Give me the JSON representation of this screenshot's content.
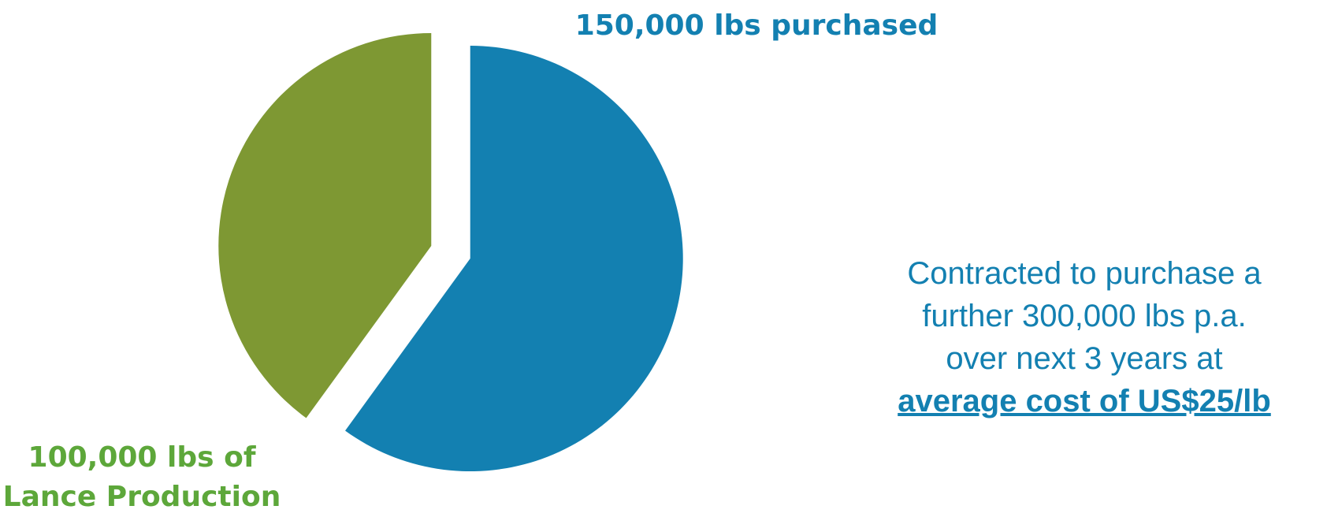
{
  "chart_data": {
    "type": "pie",
    "exploded": true,
    "slices": [
      {
        "label": "150,000 lbs purchased",
        "value": 150000,
        "color": "#1380B1"
      },
      {
        "label": "100,000 lbs of Lance Production",
        "value": 100000,
        "color": "#7E9833"
      }
    ],
    "labels": {
      "purchased": "150,000 lbs purchased",
      "lance_line1": "100,000 lbs of",
      "lance_line2": "Lance Production"
    },
    "annotation": {
      "line1": "Contracted to purchase a",
      "line2": "further 300,000 lbs p.a.",
      "line3": "over next 3 years at",
      "highlight": "average cost of US$25/lb"
    }
  },
  "colors": {
    "blue": "#1380B1",
    "green": "#7E9833",
    "green_label": "#5DA73A"
  }
}
